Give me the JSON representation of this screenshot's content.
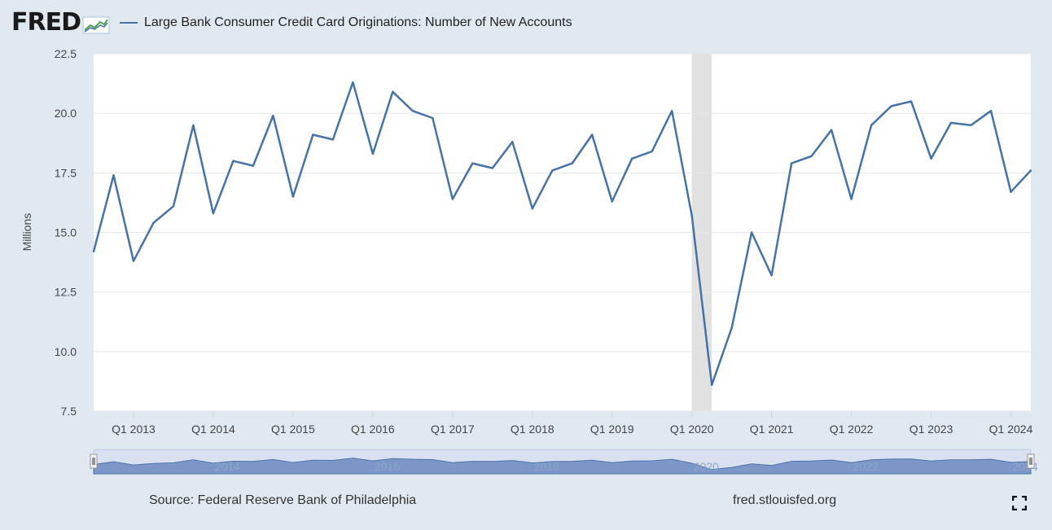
{
  "header": {
    "logo_text": "FRED",
    "series_title": "Large Bank Consumer Credit Card Originations: Number of New Accounts"
  },
  "footer": {
    "source": "Source: Federal Reserve Bank of Philadelphia",
    "site": "fred.stlouisfed.org"
  },
  "colors": {
    "series": "#4572a7",
    "background": "#e1e9f0",
    "plot": "#ffffff",
    "recession": "#e1e1e1",
    "navigator_fill": "#6c8cc0"
  },
  "chart_data": {
    "type": "line",
    "ylabel": "Millions",
    "xlabel": "",
    "title": "",
    "ylim": [
      7.5,
      22.5
    ],
    "yticks": [
      "22.5",
      "20.0",
      "17.5",
      "15.0",
      "12.5",
      "10.0",
      "7.5"
    ],
    "xtick_labels": [
      "Q1 2013",
      "Q1 2014",
      "Q1 2015",
      "Q1 2016",
      "Q1 2017",
      "Q1 2018",
      "Q1 2019",
      "Q1 2020",
      "Q1 2021",
      "Q1 2022",
      "Q1 2023",
      "Q1 2024"
    ],
    "navigator_labels": [
      "2014",
      "2016",
      "2018",
      "2020",
      "2022",
      "2024"
    ],
    "recession": {
      "start": "2020 Q1",
      "end": "2020 Q2"
    },
    "grid": true,
    "legend": "top-left",
    "series": [
      {
        "name": "Large Bank Consumer Credit Card Originations: Number of New Accounts",
        "x": [
          "2012 Q3",
          "2012 Q4",
          "2013 Q1",
          "2013 Q2",
          "2013 Q3",
          "2013 Q4",
          "2014 Q1",
          "2014 Q2",
          "2014 Q3",
          "2014 Q4",
          "2015 Q1",
          "2015 Q2",
          "2015 Q3",
          "2015 Q4",
          "2016 Q1",
          "2016 Q2",
          "2016 Q3",
          "2016 Q4",
          "2017 Q1",
          "2017 Q2",
          "2017 Q3",
          "2017 Q4",
          "2018 Q1",
          "2018 Q2",
          "2018 Q3",
          "2018 Q4",
          "2019 Q1",
          "2019 Q2",
          "2019 Q3",
          "2019 Q4",
          "2020 Q1",
          "2020 Q2",
          "2020 Q3",
          "2020 Q4",
          "2021 Q1",
          "2021 Q2",
          "2021 Q3",
          "2021 Q4",
          "2022 Q1",
          "2022 Q2",
          "2022 Q3",
          "2022 Q4",
          "2023 Q1",
          "2023 Q2",
          "2023 Q3",
          "2023 Q4",
          "2024 Q1",
          "2024 Q2"
        ],
        "values": [
          14.2,
          17.4,
          13.8,
          15.4,
          16.1,
          19.5,
          15.8,
          18.0,
          17.8,
          19.9,
          16.5,
          19.1,
          18.9,
          21.3,
          18.3,
          20.9,
          20.1,
          19.8,
          16.4,
          17.9,
          17.7,
          18.8,
          16.0,
          17.6,
          17.9,
          19.1,
          16.3,
          18.1,
          18.4,
          20.1,
          15.7,
          8.6,
          11.0,
          15.0,
          13.2,
          17.9,
          18.2,
          19.3,
          16.4,
          19.5,
          20.3,
          20.5,
          18.1,
          19.6,
          19.5,
          20.1,
          16.7,
          17.6
        ]
      }
    ]
  }
}
